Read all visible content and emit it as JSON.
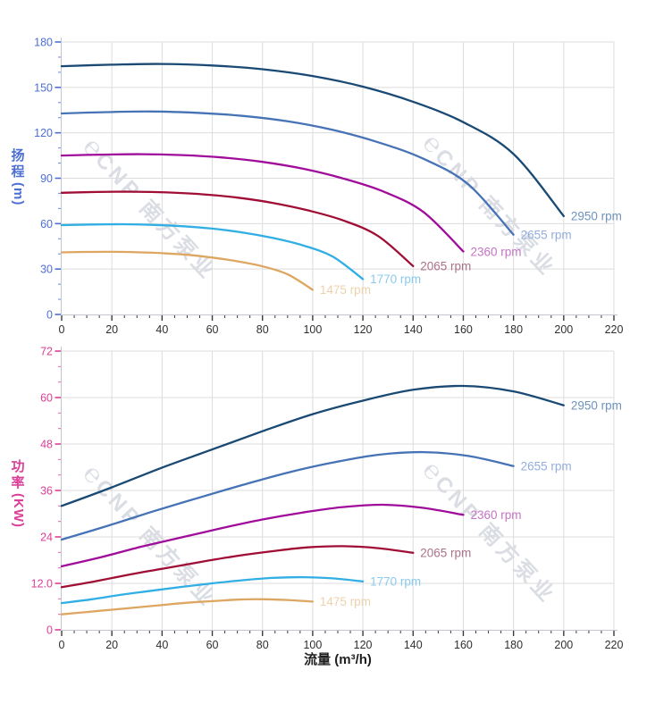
{
  "page": {
    "background": "#ffffff"
  },
  "watermark": {
    "logo_glyph": "℮",
    "text": "CNP 南方泵业",
    "color": "rgba(167,175,188,0.42)"
  },
  "x_axis": {
    "label": "流量 (m³/h)",
    "min": 0,
    "max": 220,
    "major_step": 20,
    "minor_step": 5,
    "tick_labels": [
      "0",
      "20",
      "40",
      "60",
      "80",
      "100",
      "120",
      "140",
      "160",
      "180",
      "200",
      "220"
    ],
    "tick_label_color": "#2f2f2f",
    "tick_color": "#3a3a3a",
    "title_color": "#1f1f1f",
    "axis_line_color": "#c3c7cd",
    "grid_color": "#dcdcdc"
  },
  "chart_data": [
    {
      "type": "line",
      "name": "head-curves",
      "title": "",
      "ylabel": "扬程 (m)",
      "ylabel_line1": "扬",
      "ylabel_line2": "程",
      "ylabel_unit": "(m)",
      "xlabel": "",
      "xlim": [
        0,
        220
      ],
      "ylim": [
        0,
        180
      ],
      "y_major_step": 30,
      "y_minor_step": 10,
      "y_tick_labels": [
        "0",
        "30",
        "60",
        "90",
        "120",
        "150",
        "180"
      ],
      "axis_color": "#4d6fd4",
      "grid": true,
      "legend_position": "end-of-line",
      "series": [
        {
          "name": "2950 rpm",
          "color": "#1a4a74",
          "label_color": "#6e93bc",
          "x": [
            0,
            20,
            40,
            60,
            80,
            100,
            120,
            140,
            160,
            180,
            200
          ],
          "y": [
            164,
            165,
            165.5,
            164.5,
            162,
            157.5,
            150.5,
            140.5,
            127,
            106,
            65
          ]
        },
        {
          "name": "2655 rpm",
          "color": "#4673b6",
          "label_color": "#93aedd",
          "x": [
            0,
            18,
            36,
            54,
            72,
            90,
            108,
            126,
            144,
            162,
            180
          ],
          "y": [
            132.8,
            133.7,
            134.1,
            133.2,
            131.2,
            127.6,
            121.9,
            113.8,
            102.9,
            85.9,
            52.7
          ]
        },
        {
          "name": "2360 rpm",
          "color": "#a00d9b",
          "label_color": "#c575c5",
          "x": [
            0,
            16,
            32,
            48,
            64,
            80,
            96,
            112,
            128,
            144,
            160
          ],
          "y": [
            105,
            105.6,
            105.9,
            105.3,
            103.7,
            100.8,
            96.3,
            89.9,
            81.3,
            67.8,
            41.6
          ]
        },
        {
          "name": "2065 rpm",
          "color": "#a00d35",
          "label_color": "#ab7389",
          "x": [
            0,
            14,
            28,
            42,
            56,
            70,
            84,
            98,
            112,
            126,
            140
          ],
          "y": [
            80.4,
            80.9,
            81.1,
            80.6,
            79.4,
            77.2,
            73.7,
            68.8,
            62.2,
            51.9,
            31.9
          ]
        },
        {
          "name": "1770 rpm",
          "color": "#31aee4",
          "label_color": "#8bcaef",
          "x": [
            0,
            12,
            24,
            36,
            48,
            60,
            72,
            84,
            96,
            108,
            120
          ],
          "y": [
            59,
            59.4,
            59.6,
            59.2,
            58.3,
            56.7,
            54.2,
            50.6,
            45.7,
            38.2,
            23.4
          ]
        },
        {
          "name": "1475 rpm",
          "color": "#dda661",
          "label_color": "#ecd2ab",
          "x": [
            0,
            10,
            20,
            30,
            40,
            50,
            60,
            70,
            80,
            90,
            100
          ],
          "y": [
            41,
            41.3,
            41.4,
            41.1,
            40.5,
            39.4,
            37.6,
            35.1,
            31.8,
            26.5,
            16.3
          ]
        }
      ]
    },
    {
      "type": "line",
      "name": "power-curves",
      "title": "",
      "ylabel": "功率 (KW)",
      "ylabel_line1": "功",
      "ylabel_line2": "率",
      "ylabel_unit": "(KW)",
      "xlabel": "流量 (m³/h)",
      "xlim": [
        0,
        220
      ],
      "ylim": [
        0,
        72
      ],
      "y_major_step": 12,
      "y_minor_step": 4,
      "y_tick_labels": [
        "0",
        "12.0",
        "24",
        "36",
        "48",
        "60",
        "72"
      ],
      "axis_color": "#dc3e97",
      "grid": true,
      "legend_position": "end-of-line",
      "series": [
        {
          "name": "2950 rpm",
          "color": "#1a4a74",
          "label_color": "#6e93bc",
          "x": [
            0,
            20,
            40,
            60,
            80,
            100,
            120,
            140,
            160,
            180,
            200
          ],
          "y": [
            32,
            36.8,
            41.9,
            46.6,
            51.3,
            55.7,
            59.2,
            62,
            63,
            61.6,
            58
          ]
        },
        {
          "name": "2655 rpm",
          "color": "#4673b6",
          "label_color": "#93aedd",
          "x": [
            0,
            18,
            36,
            54,
            72,
            90,
            108,
            126,
            144,
            162,
            180
          ],
          "y": [
            23.3,
            26.8,
            30.5,
            34,
            37.4,
            40.6,
            43.2,
            45.2,
            45.9,
            44.9,
            42.3
          ]
        },
        {
          "name": "2360 rpm",
          "color": "#a00d9b",
          "label_color": "#c575c5",
          "x": [
            0,
            16,
            32,
            48,
            64,
            80,
            96,
            112,
            128,
            144,
            160
          ],
          "y": [
            16.4,
            18.8,
            21.5,
            23.9,
            26.3,
            28.5,
            30.3,
            31.7,
            32.3,
            31.5,
            29.7
          ]
        },
        {
          "name": "2065 rpm",
          "color": "#a00d35",
          "label_color": "#ab7389",
          "x": [
            0,
            14,
            28,
            42,
            56,
            70,
            84,
            98,
            112,
            126,
            140
          ],
          "y": [
            11,
            12.6,
            14.4,
            16,
            17.6,
            19.1,
            20.3,
            21.3,
            21.6,
            21.1,
            19.9
          ]
        },
        {
          "name": "1770 rpm",
          "color": "#31aee4",
          "label_color": "#8bcaef",
          "x": [
            0,
            12,
            24,
            36,
            48,
            60,
            72,
            84,
            96,
            108,
            120
          ],
          "y": [
            6.9,
            7.9,
            9.1,
            10.1,
            11.1,
            12,
            12.8,
            13.4,
            13.6,
            13.3,
            12.5
          ]
        },
        {
          "name": "1475 rpm",
          "color": "#dda661",
          "label_color": "#ecd2ab",
          "x": [
            0,
            10,
            20,
            30,
            40,
            50,
            60,
            70,
            80,
            90,
            100
          ],
          "y": [
            4,
            4.6,
            5.2,
            5.8,
            6.4,
            7,
            7.4,
            7.8,
            7.9,
            7.7,
            7.3
          ]
        }
      ]
    }
  ]
}
